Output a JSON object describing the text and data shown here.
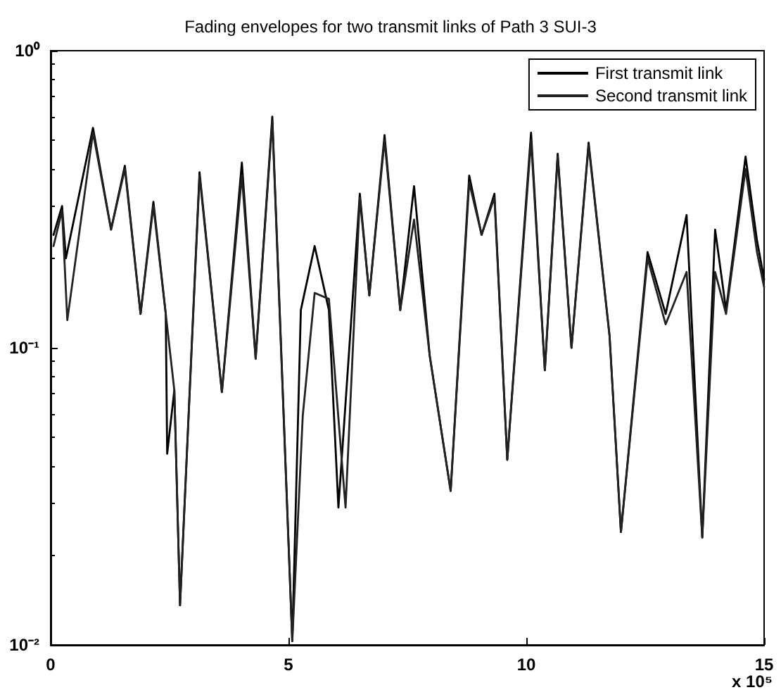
{
  "chart_data": {
    "type": "line",
    "title": "Fading envelopes for two transmit links of Path 3 SUI-3",
    "annotations": [
      "x 10⁵"
    ],
    "series": [
      {
        "name": "First transmit link",
        "color": "#000000",
        "x": [
          0.06,
          0.24,
          0.32,
          0.89,
          1.27,
          1.56,
          1.89,
          2.16,
          2.42,
          2.45,
          2.6,
          2.72,
          3.13,
          3.6,
          4.02,
          4.31,
          4.66,
          5.08,
          5.26,
          5.55,
          5.85,
          6.05,
          6.5,
          6.7,
          7.02,
          7.35,
          7.64,
          7.97,
          8.41,
          8.8,
          9.06,
          9.33,
          9.6,
          10.1,
          10.39,
          10.66,
          10.95,
          11.31,
          11.75,
          11.99,
          12.55,
          12.93,
          13.37,
          13.7,
          13.97,
          14.2,
          14.61,
          14.85,
          15
        ],
        "values": [
          0.24,
          0.3,
          0.2,
          0.55,
          0.25,
          0.41,
          0.13,
          0.31,
          0.13,
          0.044,
          0.072,
          0.0136,
          0.39,
          0.071,
          0.42,
          0.092,
          0.6,
          0.0103,
          0.134,
          0.22,
          0.134,
          0.029,
          0.33,
          0.15,
          0.52,
          0.134,
          0.35,
          0.094,
          0.033,
          0.38,
          0.24,
          0.33,
          0.042,
          0.53,
          0.084,
          0.45,
          0.1,
          0.49,
          0.11,
          0.024,
          0.21,
          0.13,
          0.28,
          0.023,
          0.25,
          0.134,
          0.44,
          0.23,
          0.17
        ]
      },
      {
        "name": "Second transmit link",
        "color": "#222222",
        "x": [
          0.06,
          0.24,
          0.35,
          0.89,
          1.27,
          1.56,
          1.89,
          2.16,
          2.42,
          2.6,
          2.72,
          3.13,
          3.6,
          4.02,
          4.31,
          4.66,
          5.08,
          5.3,
          5.55,
          5.85,
          6.2,
          6.5,
          6.7,
          7.02,
          7.35,
          7.64,
          7.97,
          8.41,
          8.8,
          9.06,
          9.33,
          9.6,
          10.1,
          10.39,
          10.66,
          10.95,
          11.31,
          11.75,
          11.99,
          12.55,
          12.93,
          13.37,
          13.7,
          13.97,
          14.2,
          14.61,
          14.85,
          15
        ],
        "values": [
          0.22,
          0.29,
          0.124,
          0.53,
          0.25,
          0.4,
          0.13,
          0.3,
          0.13,
          0.072,
          0.0136,
          0.38,
          0.071,
          0.38,
          0.092,
          0.58,
          0.0103,
          0.059,
          0.153,
          0.146,
          0.029,
          0.32,
          0.15,
          0.5,
          0.134,
          0.27,
          0.094,
          0.033,
          0.36,
          0.24,
          0.32,
          0.042,
          0.5,
          0.084,
          0.44,
          0.1,
          0.48,
          0.11,
          0.024,
          0.2,
          0.12,
          0.18,
          0.023,
          0.18,
          0.13,
          0.4,
          0.21,
          0.16
        ]
      }
    ],
    "xlim": [
      0,
      15
    ],
    "xticks": [
      0,
      5,
      10,
      15
    ],
    "ylim": [
      0.01,
      1
    ],
    "yticks": [
      {
        "value": 0.01,
        "label": "10⁻²"
      },
      {
        "value": 0.1,
        "label": "10⁻¹"
      },
      {
        "value": 1,
        "label": "10⁰"
      }
    ],
    "log": "y",
    "grid": false,
    "legend": "top right",
    "marker": "none",
    "line_style": "solid"
  }
}
